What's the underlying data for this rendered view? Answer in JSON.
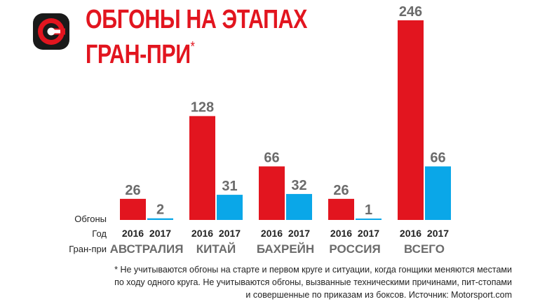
{
  "header": {
    "title_line1": "ОБГОНЫ НА ЭТАПАХ",
    "title_line2": "ГРАН-ПРИ",
    "title_mark": "*",
    "logo_icon": "brand-logo-g-icon"
  },
  "row_labels": {
    "overtakes": "Обгоны",
    "year": "Год",
    "grand_prix": "Гран-при"
  },
  "chart_data": {
    "type": "bar",
    "title": "ОБГОНЫ НА ЭТАПАХ ГРАН-ПРИ*",
    "categories": [
      "АВСТРАЛИЯ",
      "КИТАЙ",
      "БАХРЕЙН",
      "РОССИЯ",
      "ВСЕГО"
    ],
    "series": [
      {
        "name": "2016",
        "color": "#e2151f",
        "values": [
          26,
          128,
          66,
          26,
          246
        ]
      },
      {
        "name": "2017",
        "color": "#0aa7e8",
        "values": [
          2,
          31,
          32,
          1,
          66
        ]
      }
    ],
    "xlabel": "Гран-при",
    "ylabel": "Обгоны",
    "ylim": [
      0,
      246
    ],
    "grid": false
  },
  "footnote": {
    "line1": "* Не учитываются обгоны на старте и первом круге и ситуации, когда гонщики меняются местами",
    "line2": "по ходу одного круга. Не учитываются обгоны, вызванные техническими причинами, пит-стопами",
    "line3": "и совершенные по приказам из боксов. Источник: Motorsport.com"
  }
}
